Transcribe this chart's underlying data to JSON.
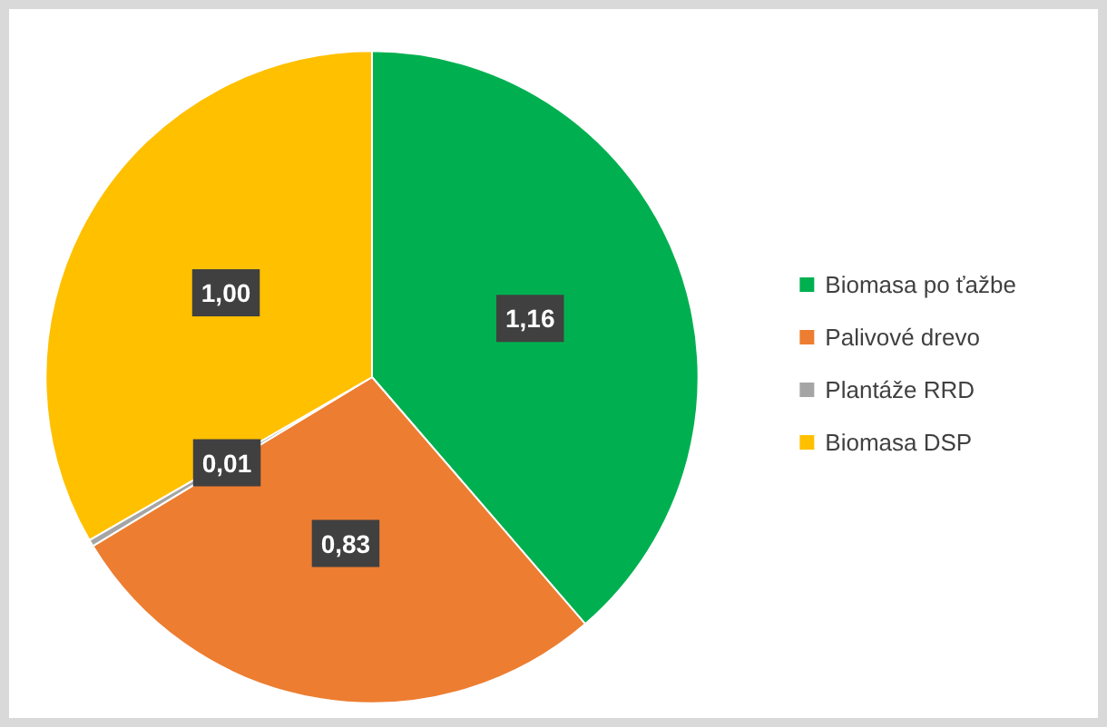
{
  "chart_data": {
    "type": "pie",
    "categories": [
      "Biomasa po ťažbe",
      "Palivové drevo",
      "Plantáže RRD",
      "Biomasa DSP"
    ],
    "values": [
      1.16,
      0.83,
      0.01,
      1.0
    ],
    "colors": [
      "#00b050",
      "#ed7d31",
      "#a5a5a5",
      "#ffc000"
    ],
    "value_labels": [
      "1,16",
      "0,83",
      "0,01",
      "1,00"
    ],
    "legend": "right"
  }
}
